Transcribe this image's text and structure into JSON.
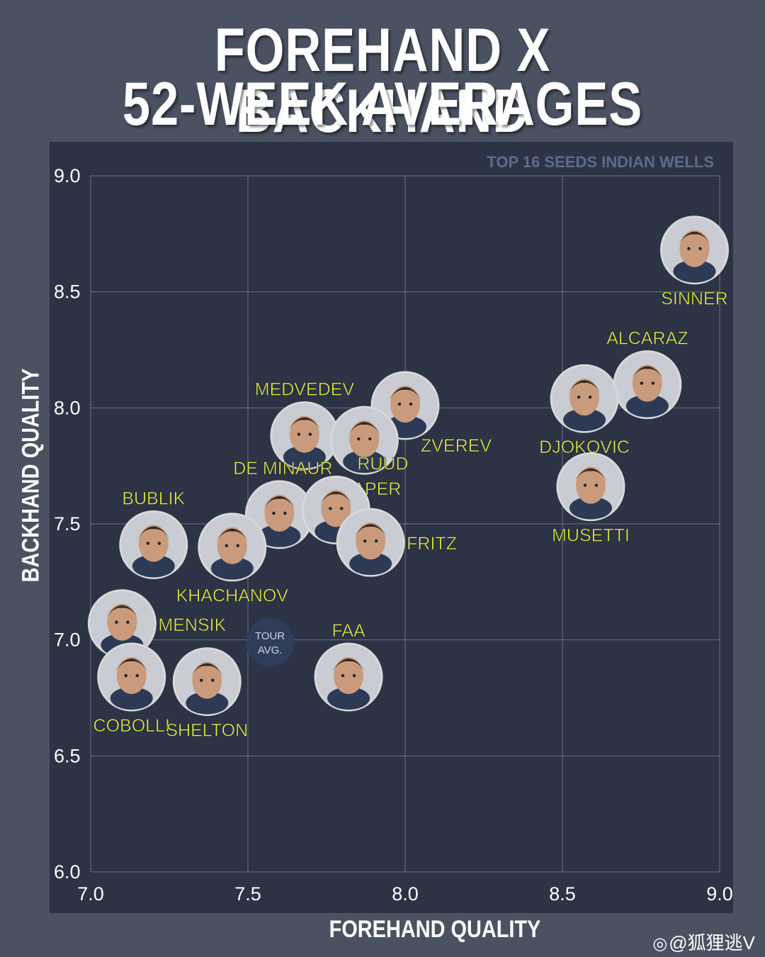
{
  "header": {
    "title_line1": "FOREHAND X BACKHAND",
    "title_line2": "52-WEEK AVERAGES"
  },
  "watermark": {
    "text": "@狐狸逃V",
    "icon": "weibo-icon"
  },
  "colors": {
    "background": "#4a5262",
    "panel": "#2c3345",
    "label": "#e5f040",
    "grid": "#9aa3b3",
    "subtitle": "#5b6b8c",
    "avatar_ring": "#d8d8d8",
    "tour_avg": "#2f3e5e"
  },
  "chart_data": {
    "type": "scatter",
    "subtitle": "TOP 16 SEEDS INDIAN WELLS",
    "xlabel": "FOREHAND QUALITY",
    "ylabel": "BACKHAND QUALITY",
    "xlim": [
      7.0,
      9.0
    ],
    "ylim": [
      6.0,
      9.0
    ],
    "x_ticks": [
      "7.0",
      "7.5",
      "8.0",
      "8.5",
      "9.0"
    ],
    "y_ticks": [
      "6.0",
      "6.5",
      "7.0",
      "7.5",
      "8.0",
      "8.5",
      "9.0"
    ],
    "grid": true,
    "points": [
      {
        "name": "SINNER",
        "x": 8.92,
        "y": 8.68,
        "label_pos": "below"
      },
      {
        "name": "ALCARAZ",
        "x": 8.77,
        "y": 8.1,
        "label_pos": "above"
      },
      {
        "name": "DJOKOVIC",
        "x": 8.57,
        "y": 8.04,
        "label_pos": "below"
      },
      {
        "name": "MUSETTI",
        "x": 8.59,
        "y": 7.66,
        "label_pos": "below"
      },
      {
        "name": "ZVEREV",
        "x": 8.0,
        "y": 8.01,
        "label_pos": "below-right"
      },
      {
        "name": "MEDVEDEV",
        "x": 7.68,
        "y": 7.88,
        "label_pos": "above"
      },
      {
        "name": "DRAPER",
        "x": 7.87,
        "y": 7.86,
        "label_pos": "below"
      },
      {
        "name": "DE MINAUR",
        "x": 7.6,
        "y": 7.54,
        "label_pos": "above-left"
      },
      {
        "name": "RUUD",
        "x": 7.78,
        "y": 7.56,
        "label_pos": "above-right"
      },
      {
        "name": "FRITZ",
        "x": 7.89,
        "y": 7.42,
        "label_pos": "right"
      },
      {
        "name": "BUBLIK",
        "x": 7.2,
        "y": 7.41,
        "label_pos": "above"
      },
      {
        "name": "KHACHANOV",
        "x": 7.45,
        "y": 7.4,
        "label_pos": "below"
      },
      {
        "name": "MENSIK",
        "x": 7.1,
        "y": 7.07,
        "label_pos": "right"
      },
      {
        "name": "COBOLLI",
        "x": 7.13,
        "y": 6.84,
        "label_pos": "below"
      },
      {
        "name": "SHELTON",
        "x": 7.37,
        "y": 6.82,
        "label_pos": "below"
      },
      {
        "name": "FAA",
        "x": 7.82,
        "y": 6.84,
        "label_pos": "above"
      }
    ],
    "reference": {
      "label_line1": "TOUR",
      "label_line2": "AVG.",
      "x": 7.57,
      "y": 6.99
    }
  }
}
